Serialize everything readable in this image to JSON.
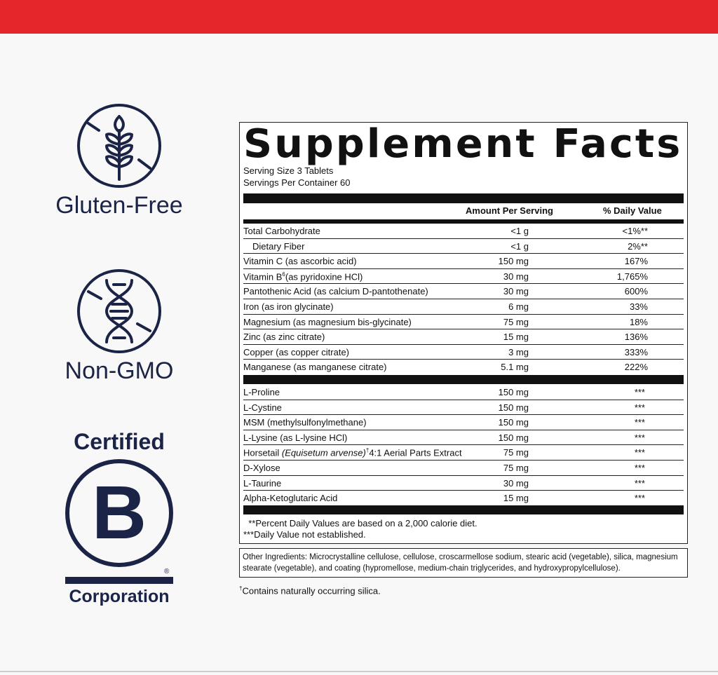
{
  "colors": {
    "accent": "#e5262a",
    "navy": "#1b2447"
  },
  "badges": {
    "gluten_free": {
      "icon": "wheat-crossed-icon",
      "label": "Gluten-Free"
    },
    "non_gmo": {
      "icon": "dna-crossed-icon",
      "label": "Non-GMO"
    },
    "bcorp": {
      "top": "Certified",
      "letter": "B",
      "registered": "®",
      "bottom": "Corporation"
    }
  },
  "facts": {
    "title": "Supplement Facts",
    "serving_size": "Serving Size  3 Tablets",
    "servings_per_container": "Servings Per Container 60",
    "col_amount": "Amount Per Serving",
    "col_dv": "% Daily Value",
    "section1": [
      {
        "name": [
          {
            "t": "Total Carbohydrate"
          }
        ],
        "amount": "<1 g",
        "dv": "<1%**"
      },
      {
        "name": [
          {
            "t": "   Dietary Fiber"
          }
        ],
        "amount": "<1 g",
        "dv": "2%**",
        "indent": true
      },
      {
        "name": [
          {
            "t": "Vitamin C (as ascorbic acid)"
          }
        ],
        "amount": "150 mg",
        "dv": "167%"
      },
      {
        "name": [
          {
            "t": "Vitamin B"
          },
          {
            "t": "6",
            "s": "sup"
          },
          {
            "t": " (as pyridoxine HCl)"
          }
        ],
        "amount": "30 mg",
        "dv": "1,765%"
      },
      {
        "name": [
          {
            "t": "Pantothenic Acid (as calcium D-pantothenate)"
          }
        ],
        "amount": "30 mg",
        "dv": "600%"
      },
      {
        "name": [
          {
            "t": "Iron (as iron glycinate)"
          }
        ],
        "amount": "6 mg",
        "dv": "33%"
      },
      {
        "name": [
          {
            "t": "Magnesium (as magnesium bis-glycinate)"
          }
        ],
        "amount": "75 mg",
        "dv": "18%"
      },
      {
        "name": [
          {
            "t": "Zinc (as zinc citrate)"
          }
        ],
        "amount": "15 mg",
        "dv": "136%"
      },
      {
        "name": [
          {
            "t": "Copper (as copper citrate)"
          }
        ],
        "amount": "3 mg",
        "dv": "333%"
      },
      {
        "name": [
          {
            "t": "Manganese (as manganese citrate)"
          }
        ],
        "amount": "5.1 mg",
        "dv": "222%"
      }
    ],
    "section2": [
      {
        "name": [
          {
            "t": "L-Proline"
          }
        ],
        "amount": "150 mg",
        "dv": "***"
      },
      {
        "name": [
          {
            "t": "L-Cystine"
          }
        ],
        "amount": "150 mg",
        "dv": "***"
      },
      {
        "name": [
          {
            "t": "MSM (methylsulfonylmethane)"
          }
        ],
        "amount": "150 mg",
        "dv": "***"
      },
      {
        "name": [
          {
            "t": "L-Lysine (as L-lysine HCl)"
          }
        ],
        "amount": "150 mg",
        "dv": "***"
      },
      {
        "name": [
          {
            "t": "Horsetail "
          },
          {
            "t": "(Equisetum arvense)",
            "s": "i"
          },
          {
            "t": "†",
            "s": "sup"
          },
          {
            "t": " 4:1 Aerial Parts Extract"
          }
        ],
        "amount": "75 mg",
        "dv": "***"
      },
      {
        "name": [
          {
            "t": "D-Xylose"
          }
        ],
        "amount": "75 mg",
        "dv": "***"
      },
      {
        "name": [
          {
            "t": "L-Taurine"
          }
        ],
        "amount": "30 mg",
        "dv": "***"
      },
      {
        "name": [
          {
            "t": "Alpha-Ketoglutaric Acid"
          }
        ],
        "amount": "15 mg",
        "dv": "***"
      }
    ],
    "footnote1": "  **Percent Daily Values are based on a 2,000 calorie diet.",
    "footnote2": "***Daily Value not established."
  },
  "other_ingredients": "Other Ingredients: Microcrystalline cellulose, cellulose, croscarmellose sodium, stearic acid (vegetable), silica, magnesium stearate (vegetable), and coating (hypromellose, medium-chain triglycerides, and hydroxypropylcellulose).",
  "silica_note": {
    "mark": "†",
    "text": "Contains naturally occurring silica."
  }
}
